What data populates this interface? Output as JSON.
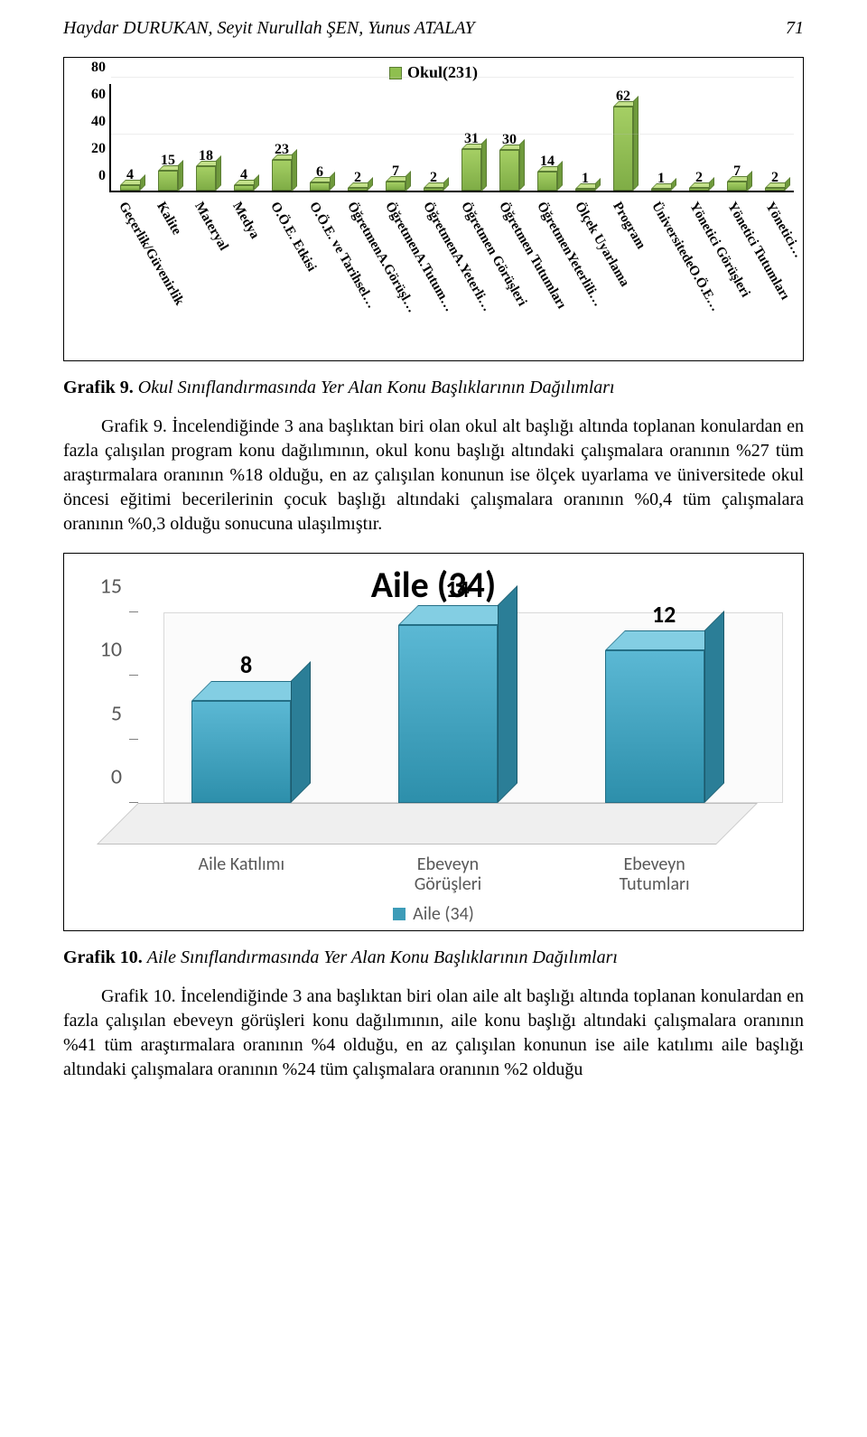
{
  "header": {
    "authors": "Haydar DURUKAN, Seyit Nurullah ŞEN, Yunus ATALAY",
    "page_number": "71"
  },
  "grafik9": {
    "legend_label": "Okul(231)",
    "ymax": 80,
    "yticks": [
      0,
      20,
      40,
      60,
      80
    ],
    "caption_bold": "Grafik 9.",
    "caption_italic": "Okul Sınıflandırmasında Yer Alan Konu Başlıklarının Dağılımları",
    "bar_color_front": "#8fbf4f",
    "bar_color_top": "#c3e08a",
    "bar_color_side": "#6f9a3c",
    "bars": [
      {
        "label": "Geçerlik/Güvenirlik",
        "value": 4
      },
      {
        "label": "Kalite",
        "value": 15
      },
      {
        "label": "Materyal",
        "value": 18
      },
      {
        "label": "Medya",
        "value": 4
      },
      {
        "label": "O.Ö.E. Etkisi",
        "value": 23
      },
      {
        "label": "O.Ö.E. ve Tarihsel…",
        "value": 6
      },
      {
        "label": "ÖğretmenA.Görüşl…",
        "value": 2
      },
      {
        "label": "ÖğretmenA.Tutum…",
        "value": 7
      },
      {
        "label": "ÖğretmenA.Yeterli…",
        "value": 2
      },
      {
        "label": "Öğretmen Görüşleri",
        "value": 31
      },
      {
        "label": "Öğretmen Tutumları",
        "value": 30
      },
      {
        "label": "ÖğretmenYeterlili…",
        "value": 14
      },
      {
        "label": "Ölçek Uyarlama",
        "value": 1
      },
      {
        "label": "Program",
        "value": 62
      },
      {
        "label": "ÜniversitedeO.Ö.E…",
        "value": 1
      },
      {
        "label": "Yönetici Görüşleri",
        "value": 2
      },
      {
        "label": "Yönetici Tutumları",
        "value": 7
      },
      {
        "label": "Yönetici…",
        "value": 2
      }
    ]
  },
  "paragraph9": "Grafik 9. İncelendiğinde 3 ana başlıktan biri olan okul alt başlığı altında toplanan konulardan en fazla çalışılan program konu dağılımının, okul konu başlığı altındaki çalışmalara oranının %27 tüm araştırmalara oranının %18 olduğu, en az çalışılan konunun ise ölçek uyarlama ve üniversitede okul öncesi eğitimi becerilerinin çocuk başlığı altındaki çalışmalara oranının %0,4 tüm çalışmalara oranının %0,3 olduğu sonucuna ulaşılmıştır.",
  "grafik10": {
    "title": "Aile (34)",
    "ymax": 15,
    "yticks": [
      0,
      5,
      10,
      15
    ],
    "legend_label": "Aile (34)",
    "caption_bold": "Grafik 10.",
    "caption_italic": "Aile Sınıflandırmasında Yer Alan Konu Başlıklarının Dağılımları",
    "bar_color_front": "#3d9cb8",
    "bar_color_top": "#83cee3",
    "bar_color_side": "#2b7e97",
    "bars": [
      {
        "label_line1": "Aile Katılımı",
        "label_line2": "",
        "value": 8
      },
      {
        "label_line1": "Ebeveyn",
        "label_line2": "Görüşleri",
        "value": 14
      },
      {
        "label_line1": "Ebeveyn",
        "label_line2": "Tutumları",
        "value": 12
      }
    ]
  },
  "paragraph10": "Grafik 10. İncelendiğinde 3 ana başlıktan biri olan aile alt başlığı altında toplanan konulardan en fazla çalışılan ebeveyn görüşleri konu dağılımının, aile konu başlığı altındaki çalışmalara oranının %41 tüm araştırmalara oranının %4 olduğu, en az çalışılan konunun ise aile katılımı aile başlığı altındaki çalışmalara oranının %24 tüm çalışmalara oranının %2 olduğu"
}
